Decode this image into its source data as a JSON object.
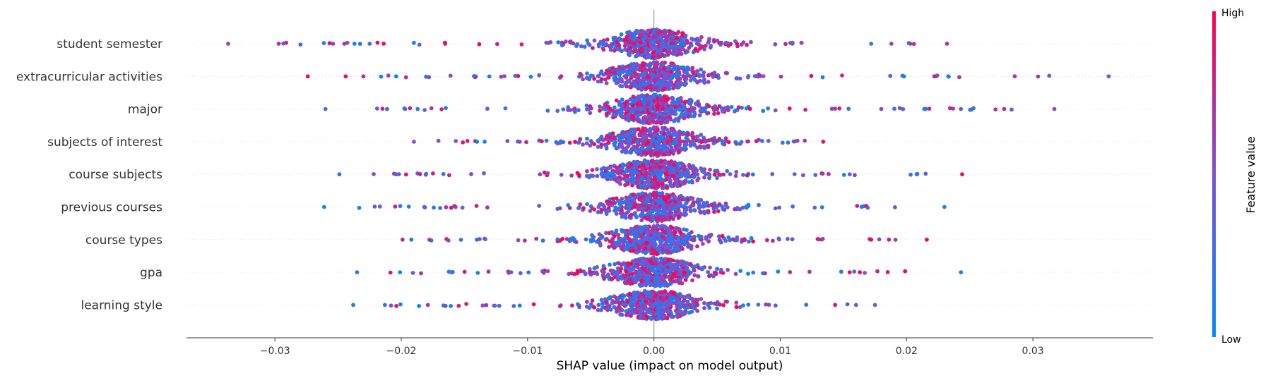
{
  "chart_data": {
    "type": "scatter",
    "xlabel": "SHAP value (impact on model output)",
    "xlim": [
      -0.037,
      0.0395
    ],
    "xticks": [
      -0.03,
      -0.02,
      -0.01,
      0.0,
      0.01,
      0.02,
      0.03
    ],
    "xtick_labels": [
      "−0.03",
      "−0.02",
      "−0.01",
      "0.00",
      "0.01",
      "0.02",
      "0.03"
    ],
    "colorbar": {
      "title": "Feature value",
      "high_label": "High",
      "low_label": "Low",
      "low_color": "#008bfb",
      "high_color": "#ff0052"
    },
    "features": [
      {
        "name": "student semester",
        "min": -0.0337,
        "max": 0.0232,
        "outliers": [
          -0.0337,
          -0.0297,
          -0.0254,
          -0.0245,
          -0.0237,
          -0.0225,
          0.0172,
          0.0188,
          0.0203,
          0.0232
        ]
      },
      {
        "name": "extracurricular activities",
        "min": -0.0274,
        "max": 0.036,
        "outliers": [
          -0.0274,
          -0.0244,
          -0.023,
          -0.0204,
          0.0198,
          0.0222,
          0.0233,
          0.036
        ]
      },
      {
        "name": "major",
        "min": -0.026,
        "max": 0.0317,
        "outliers": [
          -0.026,
          -0.0197,
          -0.0187,
          0.018,
          0.0214,
          0.0243,
          0.0317
        ]
      },
      {
        "name": "subjects of interest",
        "min": -0.019,
        "max": 0.0134,
        "outliers": [
          -0.019,
          -0.014,
          -0.0134,
          0.0134
        ]
      },
      {
        "name": "course subjects",
        "min": -0.0249,
        "max": 0.0244,
        "outliers": [
          -0.0249,
          -0.0204,
          0.0155,
          0.0208,
          0.0244
        ]
      },
      {
        "name": "previous courses",
        "min": -0.0261,
        "max": 0.023,
        "outliers": [
          -0.0261,
          -0.0157,
          0.023
        ]
      },
      {
        "name": "course types",
        "min": -0.0199,
        "max": 0.0216,
        "outliers": [
          -0.0199,
          -0.0192,
          0.0172,
          0.0186,
          0.0216
        ]
      },
      {
        "name": "gpa",
        "min": -0.0235,
        "max": 0.0243,
        "outliers": [
          -0.0235,
          -0.0201,
          0.0155,
          0.0163,
          0.0243
        ]
      },
      {
        "name": "learning style",
        "min": -0.0238,
        "max": 0.0175,
        "outliers": [
          -0.0238,
          -0.0213,
          -0.0179,
          0.016,
          0.0175
        ]
      }
    ]
  }
}
